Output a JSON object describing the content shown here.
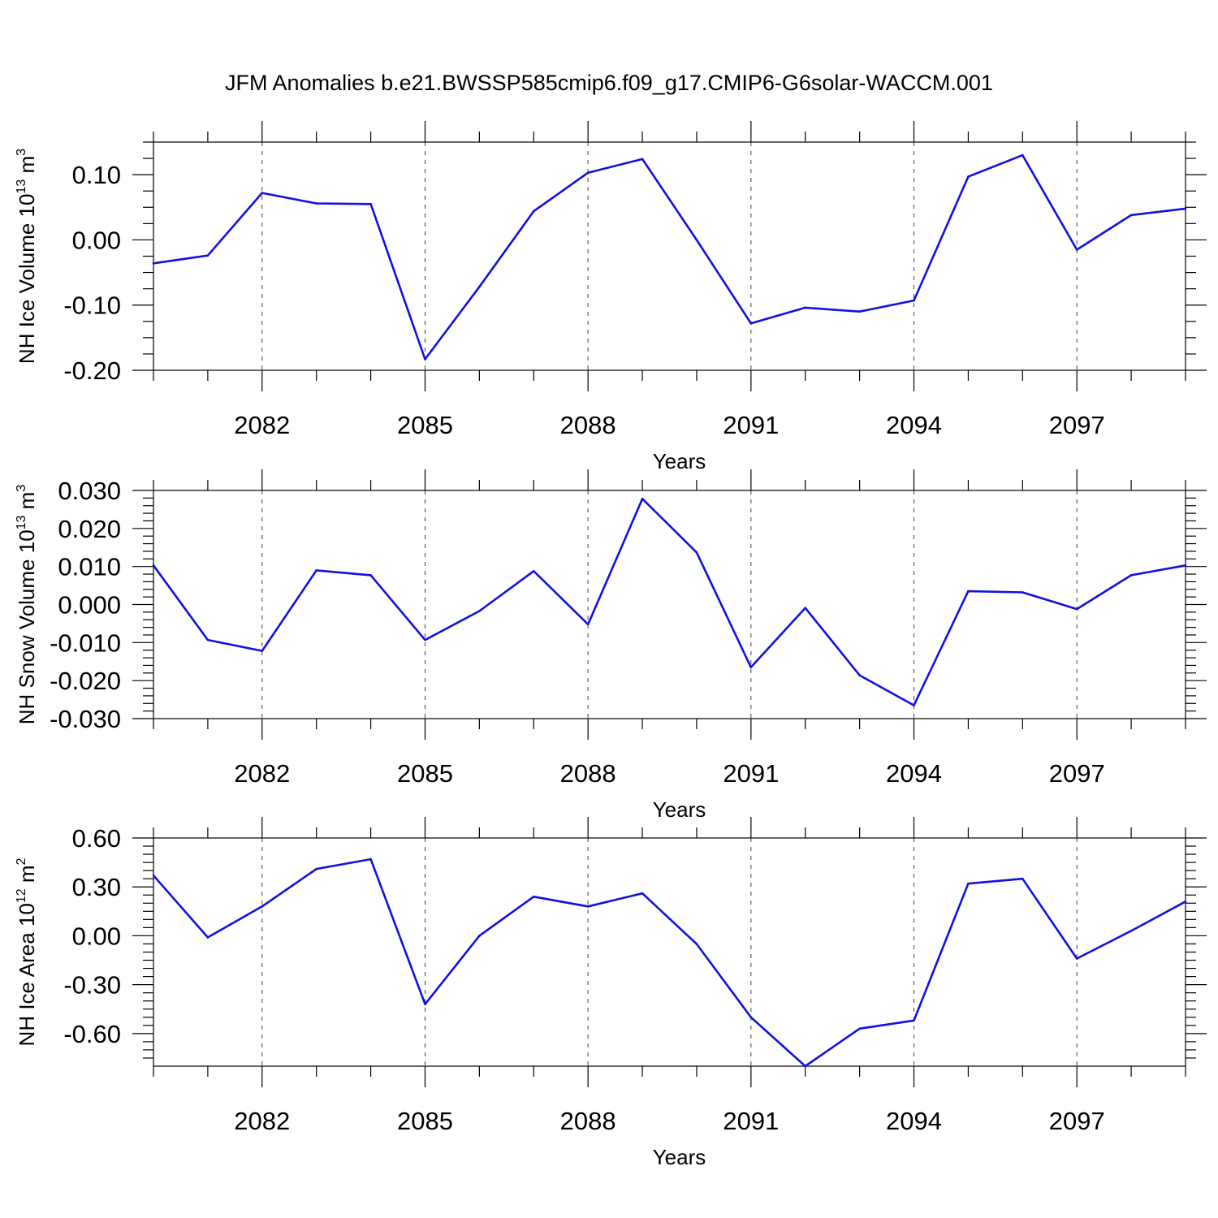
{
  "chart_data": {
    "title": "JFM Anomalies b.e21.BWSSP585cmip6.f09_g17.CMIP6-G6solar-WACCM.001",
    "panels": [
      {
        "type": "line",
        "ylabel": "NH Ice Volume 10",
        "ylabel_sup": "13",
        "ylabel_unit": "m",
        "ylabel_unit_sup": "3",
        "xlabel": "Years",
        "xlim": [
          2080,
          2099
        ],
        "ylim": [
          -0.2,
          0.15
        ],
        "yticks": [
          -0.2,
          -0.1,
          0.0,
          0.1
        ],
        "ytick_labels": [
          "-0.20",
          "-0.10",
          "0.00",
          "0.10"
        ],
        "yminor": [
          -0.175,
          -0.15,
          -0.125,
          -0.075,
          -0.05,
          -0.025,
          0.025,
          0.05,
          0.075,
          0.125,
          0.15
        ],
        "xticks": [
          2082,
          2085,
          2088,
          2091,
          2094,
          2097
        ],
        "xtick_labels": [
          "2082",
          "2085",
          "2088",
          "2091",
          "2094",
          "2097"
        ],
        "series": [
          {
            "color": "#1010e6",
            "x": [
              2080,
              2081,
              2082,
              2083,
              2084,
              2085,
              2086,
              2087,
              2088,
              2089,
              2090,
              2091,
              2092,
              2093,
              2094,
              2095,
              2096,
              2097,
              2098,
              2099
            ],
            "values": [
              -0.036,
              -0.024,
              0.072,
              0.056,
              0.055,
              -0.183,
              -0.072,
              0.044,
              0.103,
              0.124,
              0.0,
              -0.128,
              -0.104,
              -0.11,
              -0.093,
              0.097,
              0.13,
              -0.015,
              0.038,
              0.048
            ]
          }
        ]
      },
      {
        "type": "line",
        "ylabel": "NH Snow Volume 10",
        "ylabel_sup": "13",
        "ylabel_unit": "m",
        "ylabel_unit_sup": "3",
        "xlabel": "Years",
        "xlim": [
          2080,
          2099
        ],
        "ylim": [
          -0.03,
          0.03
        ],
        "yticks": [
          -0.03,
          -0.02,
          -0.01,
          0.0,
          0.01,
          0.02,
          0.03
        ],
        "ytick_labels": [
          "-0.030",
          "-0.020",
          "-0.010",
          "0.000",
          "0.010",
          "0.020",
          "0.030"
        ],
        "yminor": [
          -0.028,
          -0.026,
          -0.024,
          -0.022,
          -0.018,
          -0.016,
          -0.014,
          -0.012,
          -0.008,
          -0.006,
          -0.004,
          -0.002,
          0.002,
          0.004,
          0.006,
          0.008,
          0.012,
          0.014,
          0.016,
          0.018,
          0.022,
          0.024,
          0.026,
          0.028
        ],
        "xticks": [
          2082,
          2085,
          2088,
          2091,
          2094,
          2097
        ],
        "xtick_labels": [
          "2082",
          "2085",
          "2088",
          "2091",
          "2094",
          "2097"
        ],
        "series": [
          {
            "color": "#1010e6",
            "x": [
              2080,
              2081,
              2082,
              2083,
              2084,
              2085,
              2086,
              2087,
              2088,
              2089,
              2090,
              2091,
              2092,
              2093,
              2094,
              2095,
              2096,
              2097,
              2098,
              2099
            ],
            "values": [
              0.0103,
              -0.0093,
              -0.0122,
              0.009,
              0.0077,
              -0.0093,
              -0.0017,
              0.0088,
              -0.0052,
              0.0278,
              0.0137,
              -0.0165,
              -0.0009,
              -0.0186,
              -0.0265,
              0.0035,
              0.0032,
              -0.0012,
              0.0077,
              0.0103
            ]
          }
        ]
      },
      {
        "type": "line",
        "ylabel": "NH Ice Area 10",
        "ylabel_sup": "12",
        "ylabel_unit": "m",
        "ylabel_unit_sup": "2",
        "xlabel": "Years",
        "xlim": [
          2080,
          2099
        ],
        "ylim": [
          -0.8,
          0.6
        ],
        "yticks": [
          -0.6,
          -0.3,
          0.0,
          0.3,
          0.6
        ],
        "ytick_labels": [
          "-0.60",
          "-0.30",
          "0.00",
          "0.30",
          "0.60"
        ],
        "yminor": [
          -0.75,
          -0.7,
          -0.65,
          -0.55,
          -0.5,
          -0.45,
          -0.4,
          -0.35,
          -0.25,
          -0.2,
          -0.15,
          -0.1,
          -0.05,
          0.05,
          0.1,
          0.15,
          0.2,
          0.25,
          0.35,
          0.4,
          0.45,
          0.5,
          0.55
        ],
        "xticks": [
          2082,
          2085,
          2088,
          2091,
          2094,
          2097
        ],
        "xtick_labels": [
          "2082",
          "2085",
          "2088",
          "2091",
          "2094",
          "2097"
        ],
        "series": [
          {
            "color": "#1010e6",
            "x": [
              2080,
              2081,
              2082,
              2083,
              2084,
              2085,
              2086,
              2087,
              2088,
              2089,
              2090,
              2091,
              2092,
              2093,
              2094,
              2095,
              2096,
              2097,
              2098,
              2099
            ],
            "values": [
              0.37,
              -0.01,
              0.18,
              0.41,
              0.47,
              -0.42,
              0.0,
              0.24,
              0.18,
              0.26,
              -0.05,
              -0.5,
              -0.8,
              -0.57,
              -0.52,
              0.32,
              0.35,
              -0.14,
              0.03,
              0.21
            ]
          }
        ]
      }
    ]
  }
}
